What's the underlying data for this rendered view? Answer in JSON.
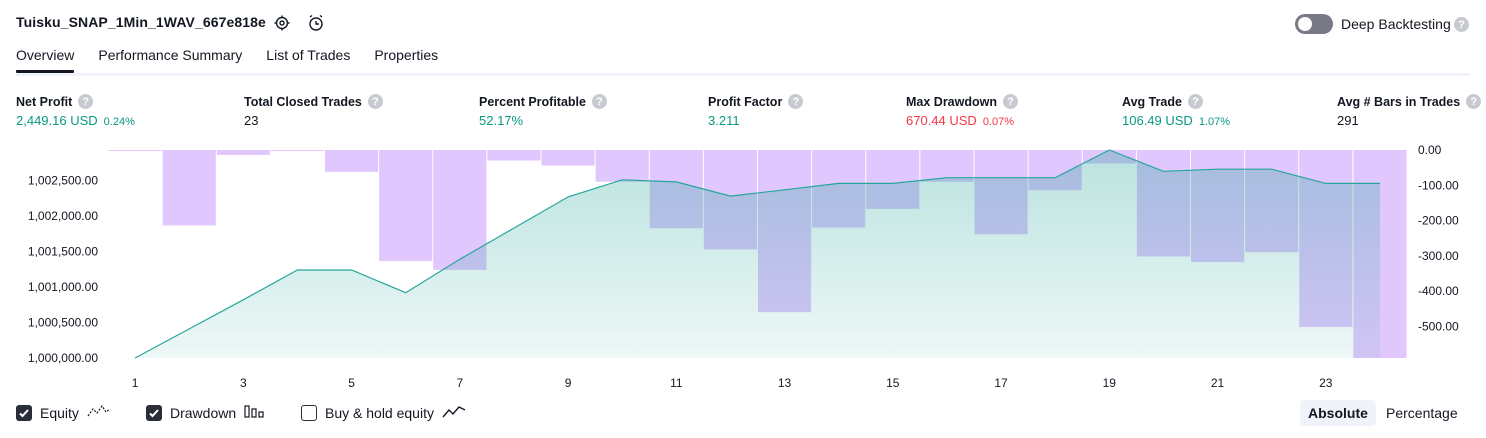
{
  "header": {
    "strategy_title": "Tuisku_SNAP_1Min_1WAV_667e818e",
    "deep_backtesting_label": "Deep Backtesting",
    "help_glyph": "?"
  },
  "tabs": [
    "Overview",
    "Performance Summary",
    "List of Trades",
    "Properties"
  ],
  "metrics": [
    {
      "label": "Net Profit",
      "value": "2,449.16 USD",
      "pct": "0.24%",
      "color": "green"
    },
    {
      "label": "Total Closed Trades",
      "value": "23",
      "pct": "",
      "color": "dark"
    },
    {
      "label": "Percent Profitable",
      "value": "52.17%",
      "pct": "",
      "color": "green"
    },
    {
      "label": "Profit Factor",
      "value": "3.211",
      "pct": "",
      "color": "green"
    },
    {
      "label": "Max Drawdown",
      "value": "670.44 USD",
      "pct": "0.07%",
      "color": "red"
    },
    {
      "label": "Avg Trade",
      "value": "106.49 USD",
      "pct": "1.07%",
      "color": "green"
    },
    {
      "label": "Avg # Bars in Trades",
      "value": "291",
      "pct": "",
      "color": "dark"
    }
  ],
  "legend": {
    "equity_label": "Equity",
    "drawdown_label": "Drawdown",
    "buyhold_label": "Buy & hold equity",
    "equity_checked": true,
    "drawdown_checked": true,
    "buyhold_checked": false
  },
  "view_toggle": {
    "absolute_label": "Absolute",
    "percentage_label": "Percentage",
    "selected": "Absolute"
  },
  "colors": {
    "equity_line": "#26a69a",
    "equity_fill": "#26a69a",
    "drawdown_bar": "#d6b4fc",
    "green": "#089981",
    "red": "#f23645"
  },
  "chart_data": {
    "type": "area",
    "x": [
      1,
      2,
      3,
      4,
      5,
      6,
      7,
      8,
      9,
      10,
      11,
      12,
      13,
      14,
      15,
      16,
      17,
      18,
      19,
      20,
      21,
      22,
      23,
      24
    ],
    "x_tick_labels": [
      "1",
      "3",
      "5",
      "7",
      "9",
      "11",
      "13",
      "15",
      "17",
      "19",
      "21",
      "23"
    ],
    "series": [
      {
        "type": "line",
        "values": [
          1000000,
          1000410,
          1000820,
          1001240,
          1001240,
          1000920,
          1001390,
          1001830,
          1002270,
          1002510,
          1002480,
          1002280,
          1002370,
          1002460,
          1002460,
          1002540,
          1002540,
          1002540,
          1002930,
          1002630,
          1002660,
          1002660,
          1002460,
          1002460
        ]
      },
      {
        "type": "bar",
        "values": [
          -2,
          -214,
          -14,
          -2,
          -62,
          -315,
          -340,
          -30,
          -44,
          -90,
          -222,
          -282,
          -460,
          -220,
          -167,
          -90,
          -239,
          -114,
          -38,
          -302,
          -318,
          -290,
          -502,
          -590
        ]
      }
    ],
    "y_left_ticks": [
      "1,000,000.00",
      "1,000,500.00",
      "1,001,000.00",
      "1,001,500.00",
      "1,002,000.00",
      "1,002,500.00"
    ],
    "y_left_range": [
      1000000,
      1002930
    ],
    "y_right_ticks": [
      "0.00",
      "-100.00",
      "-200.00",
      "-300.00",
      "-400.00",
      "-500.00"
    ],
    "y_right_range": [
      -590,
      0
    ]
  }
}
